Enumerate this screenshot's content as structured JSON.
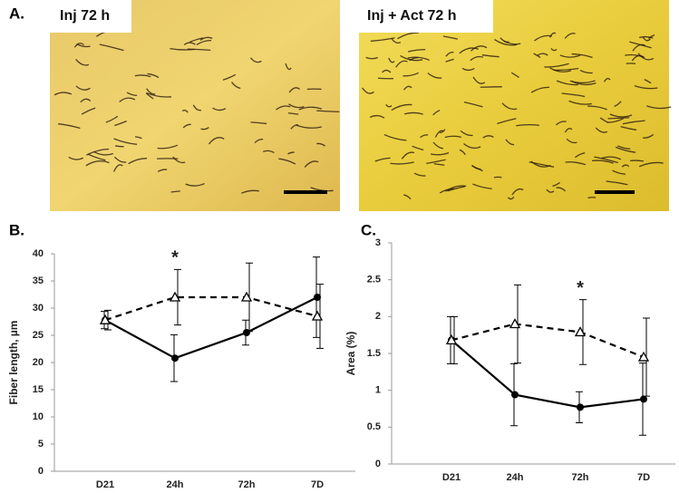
{
  "figure": {
    "panel_label": "A.",
    "images": [
      {
        "label": "Inj 72 h"
      },
      {
        "label": "Inj + Act 72 h"
      }
    ]
  },
  "chart_data": [
    {
      "type": "line",
      "panel_label": "B.",
      "ylabel": "Fiber length, µm",
      "categories": [
        "D21",
        "24h",
        "72h",
        "7D"
      ],
      "ylim": [
        0,
        40
      ],
      "yticks": [
        0,
        5,
        10,
        15,
        20,
        25,
        30,
        35,
        40
      ],
      "series": [
        {
          "color": "#000000",
          "marker": "circle",
          "dashed": false,
          "values": [
            27.8,
            20.8,
            25.5,
            32
          ],
          "errors": [
            1.6,
            4.3,
            2.3,
            7.4
          ]
        },
        {
          "color": "#000000",
          "marker": "triangle",
          "dashed": true,
          "values": [
            27.8,
            32,
            32,
            28.5
          ],
          "errors": [
            1.8,
            5.1,
            6.3,
            5.9
          ]
        }
      ],
      "annotations": [
        {
          "text": "*",
          "category": "24h"
        }
      ]
    },
    {
      "type": "line",
      "panel_label": "C.",
      "ylabel": "Area (%)",
      "categories": [
        "D21",
        "24h",
        "72h",
        "7D"
      ],
      "ylim": [
        0,
        3
      ],
      "yticks": [
        0,
        0.5,
        1,
        1.5,
        2,
        2.5,
        3
      ],
      "series": [
        {
          "color": "#000000",
          "marker": "circle",
          "dashed": false,
          "values": [
            1.68,
            0.94,
            0.77,
            0.88
          ],
          "errors": [
            0.32,
            0.42,
            0.21,
            0.49
          ]
        },
        {
          "color": "#000000",
          "marker": "triangle",
          "dashed": true,
          "values": [
            1.68,
            1.9,
            1.79,
            1.45
          ],
          "errors": [
            0.32,
            0.53,
            0.44,
            0.53
          ]
        }
      ],
      "annotations": [
        {
          "text": "*",
          "category": "72h"
        }
      ]
    }
  ]
}
